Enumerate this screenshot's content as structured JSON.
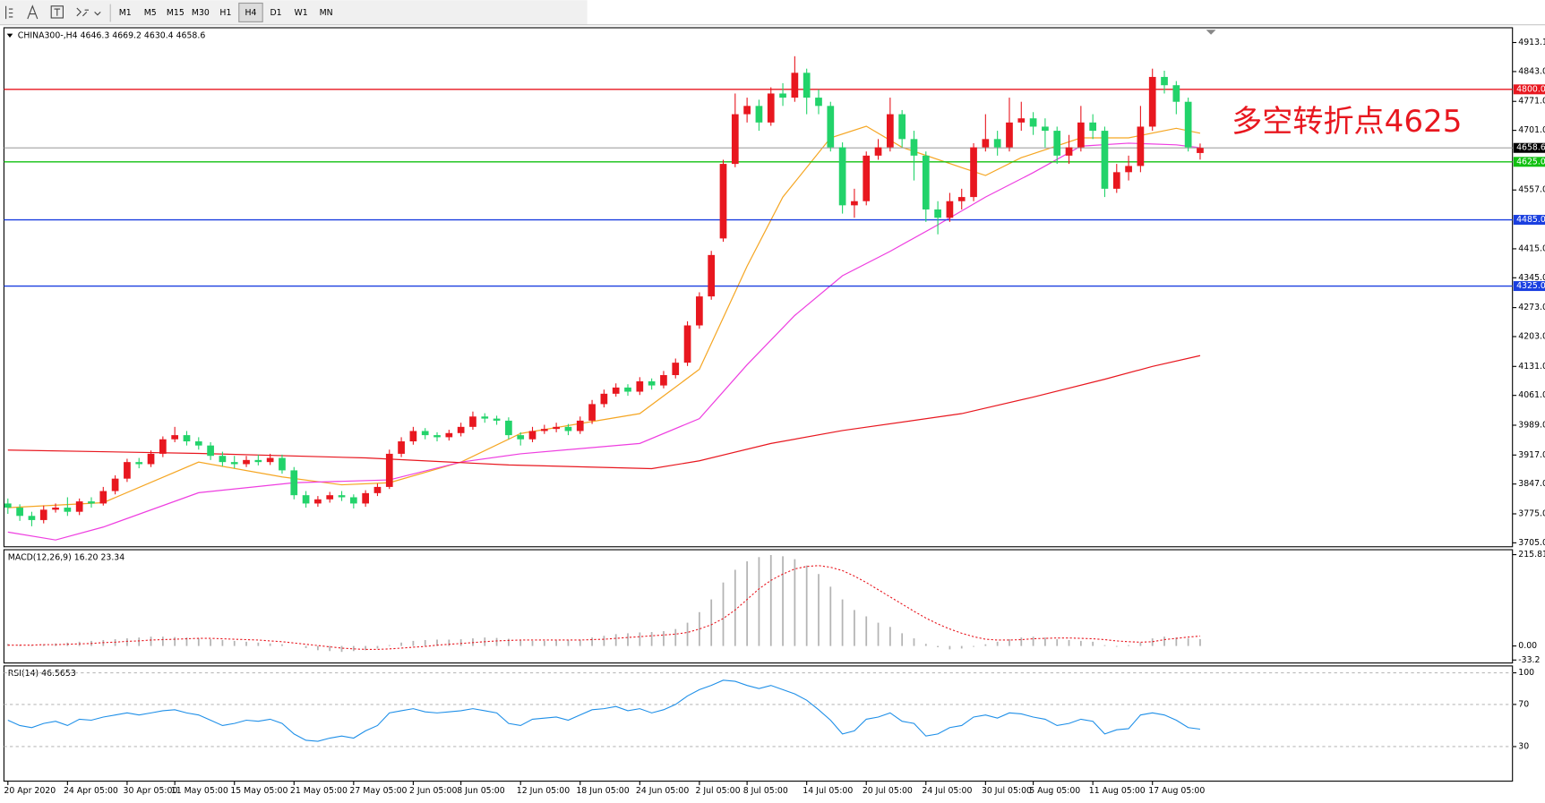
{
  "toolbar": {
    "buttons": [
      {
        "label": "M1",
        "pressed": false
      },
      {
        "label": "M5",
        "pressed": false
      },
      {
        "label": "M15",
        "pressed": false
      },
      {
        "label": "M30",
        "pressed": false
      },
      {
        "label": "H1",
        "pressed": false
      },
      {
        "label": "H4",
        "pressed": true
      },
      {
        "label": "D1",
        "pressed": false
      },
      {
        "label": "W1",
        "pressed": false
      },
      {
        "label": "MN",
        "pressed": false
      }
    ]
  },
  "chart_data": [
    {
      "type": "candlestick",
      "title": "CHINA300-,H4  4646.3 4669.2 4630.4 4658.6",
      "annotation": "多空转折点4625",
      "annotation_color": "#e8171f",
      "up_color": "#e8171f",
      "down_color": "#22d36a",
      "ylim": [
        3705,
        4913.1
      ],
      "yticks": [
        4913.1,
        {
          "value": 4843,
          "label": "4843.0"
        },
        {
          "value": 4771,
          "label": "4771.0"
        },
        {
          "value": 4701,
          "label": "4701.0"
        },
        {
          "value": 4557,
          "label": "4557.0"
        },
        {
          "value": 4415,
          "label": "4415.0"
        },
        {
          "value": 4345,
          "label": "4345.0"
        },
        {
          "value": 4273,
          "label": "4273.0"
        },
        {
          "value": 4203,
          "label": "4203.0"
        },
        {
          "value": 4131,
          "label": "4131.0"
        },
        {
          "value": 4061,
          "label": "4061.0"
        },
        {
          "value": 3989,
          "label": "3989.0"
        },
        {
          "value": 3917,
          "label": "3917.0"
        },
        {
          "value": 3847,
          "label": "3847.0"
        },
        {
          "value": 3775,
          "label": "3775.0"
        },
        {
          "value": 3705,
          "label": "3705.0"
        }
      ],
      "ohlc": [
        [
          3800,
          3812,
          3775,
          3790
        ],
        [
          3790,
          3798,
          3758,
          3770
        ],
        [
          3770,
          3780,
          3745,
          3760
        ],
        [
          3760,
          3795,
          3752,
          3785
        ],
        [
          3785,
          3800,
          3778,
          3790
        ],
        [
          3790,
          3815,
          3770,
          3780
        ],
        [
          3780,
          3812,
          3772,
          3805
        ],
        [
          3805,
          3815,
          3790,
          3800
        ],
        [
          3800,
          3840,
          3795,
          3830
        ],
        [
          3830,
          3868,
          3822,
          3860
        ],
        [
          3860,
          3908,
          3852,
          3900
        ],
        [
          3900,
          3910,
          3885,
          3895
        ],
        [
          3895,
          3928,
          3888,
          3920
        ],
        [
          3920,
          3962,
          3912,
          3955
        ],
        [
          3955,
          3985,
          3948,
          3965
        ],
        [
          3965,
          3975,
          3940,
          3950
        ],
        [
          3950,
          3960,
          3930,
          3940
        ],
        [
          3940,
          3948,
          3905,
          3915
        ],
        [
          3915,
          3925,
          3890,
          3900
        ],
        [
          3900,
          3915,
          3885,
          3895
        ],
        [
          3895,
          3915,
          3888,
          3905
        ],
        [
          3905,
          3918,
          3892,
          3900
        ],
        [
          3900,
          3920,
          3893,
          3910
        ],
        [
          3910,
          3918,
          3872,
          3880
        ],
        [
          3880,
          3888,
          3810,
          3820
        ],
        [
          3820,
          3830,
          3790,
          3800
        ],
        [
          3800,
          3818,
          3792,
          3810
        ],
        [
          3810,
          3828,
          3802,
          3820
        ],
        [
          3820,
          3830,
          3806,
          3815
        ],
        [
          3815,
          3822,
          3788,
          3800
        ],
        [
          3800,
          3832,
          3792,
          3825
        ],
        [
          3825,
          3848,
          3818,
          3840
        ],
        [
          3840,
          3930,
          3835,
          3920
        ],
        [
          3920,
          3960,
          3912,
          3950
        ],
        [
          3950,
          3985,
          3942,
          3975
        ],
        [
          3975,
          3982,
          3955,
          3965
        ],
        [
          3965,
          3972,
          3950,
          3960
        ],
        [
          3960,
          3978,
          3952,
          3970
        ],
        [
          3970,
          3995,
          3962,
          3985
        ],
        [
          3985,
          4022,
          3978,
          4010
        ],
        [
          4010,
          4018,
          3995,
          4005
        ],
        [
          4005,
          4012,
          3990,
          4000
        ],
        [
          4000,
          4008,
          3955,
          3965
        ],
        [
          3965,
          3972,
          3940,
          3955
        ],
        [
          3955,
          3985,
          3948,
          3975
        ],
        [
          3975,
          3990,
          3968,
          3980
        ],
        [
          3980,
          3995,
          3972,
          3985
        ],
        [
          3985,
          3992,
          3965,
          3975
        ],
        [
          3975,
          4010,
          3968,
          4000
        ],
        [
          4000,
          4050,
          3992,
          4040
        ],
        [
          4040,
          4075,
          4032,
          4065
        ],
        [
          4065,
          4090,
          4058,
          4080
        ],
        [
          4080,
          4088,
          4060,
          4070
        ],
        [
          4070,
          4105,
          4062,
          4095
        ],
        [
          4095,
          4102,
          4075,
          4085
        ],
        [
          4085,
          4120,
          4078,
          4110
        ],
        [
          4110,
          4150,
          4102,
          4140
        ],
        [
          4140,
          4240,
          4132,
          4230
        ],
        [
          4230,
          4310,
          4222,
          4300
        ],
        [
          4300,
          4410,
          4292,
          4400
        ],
        [
          4440,
          4630,
          4432,
          4620
        ],
        [
          4620,
          4790,
          4612,
          4740
        ],
        [
          4740,
          4780,
          4720,
          4760
        ],
        [
          4760,
          4775,
          4700,
          4720
        ],
        [
          4720,
          4805,
          4712,
          4790
        ],
        [
          4790,
          4815,
          4760,
          4780
        ],
        [
          4780,
          4880,
          4770,
          4840
        ],
        [
          4840,
          4850,
          4740,
          4780
        ],
        [
          4780,
          4800,
          4740,
          4760
        ],
        [
          4760,
          4770,
          4650,
          4660
        ],
        [
          4660,
          4672,
          4500,
          4520
        ],
        [
          4520,
          4560,
          4490,
          4530
        ],
        [
          4530,
          4650,
          4520,
          4640
        ],
        [
          4640,
          4680,
          4630,
          4660
        ],
        [
          4660,
          4780,
          4650,
          4740
        ],
        [
          4740,
          4750,
          4660,
          4680
        ],
        [
          4680,
          4700,
          4580,
          4640
        ],
        [
          4640,
          4650,
          4480,
          4510
        ],
        [
          4510,
          4530,
          4450,
          4490
        ],
        [
          4490,
          4550,
          4480,
          4530
        ],
        [
          4530,
          4560,
          4510,
          4540
        ],
        [
          4540,
          4670,
          4530,
          4660
        ],
        [
          4660,
          4740,
          4650,
          4680
        ],
        [
          4680,
          4700,
          4640,
          4660
        ],
        [
          4660,
          4780,
          4650,
          4720
        ],
        [
          4720,
          4770,
          4700,
          4730
        ],
        [
          4730,
          4745,
          4690,
          4710
        ],
        [
          4710,
          4730,
          4660,
          4700
        ],
        [
          4700,
          4710,
          4620,
          4640
        ],
        [
          4640,
          4690,
          4620,
          4660
        ],
        [
          4660,
          4760,
          4650,
          4720
        ],
        [
          4720,
          4740,
          4680,
          4700
        ],
        [
          4700,
          4710,
          4540,
          4560
        ],
        [
          4560,
          4620,
          4550,
          4600
        ],
        [
          4600,
          4640,
          4580,
          4615
        ],
        [
          4615,
          4760,
          4600,
          4710
        ],
        [
          4710,
          4850,
          4700,
          4830
        ],
        [
          4830,
          4845,
          4790,
          4810
        ],
        [
          4810,
          4820,
          4740,
          4770
        ],
        [
          4770,
          4780,
          4650,
          4660
        ],
        [
          4646.3,
          4669.2,
          4630.4,
          4658.6
        ]
      ],
      "lines": [
        {
          "color": "#f5a623",
          "x": [
            0,
            8,
            16,
            23,
            28,
            32,
            38,
            43,
            48,
            53,
            58,
            62,
            65,
            69,
            72,
            75,
            80,
            82,
            85,
            90,
            94,
            98,
            100
          ],
          "values": [
            3790,
            3802,
            3900,
            3864,
            3845,
            3850,
            3900,
            3969,
            3993,
            4017,
            4124,
            4373,
            4540,
            4683,
            4711,
            4660,
            4611,
            4592,
            4635,
            4683,
            4683,
            4706,
            4694
          ]
        },
        {
          "color": "#ee3ee0",
          "x": [
            0,
            4,
            8,
            16,
            24,
            32,
            38,
            43,
            53,
            58,
            62,
            66,
            70,
            74,
            78,
            82,
            86,
            90,
            94,
            98,
            100
          ],
          "values": [
            3731,
            3712,
            3743,
            3826,
            3850,
            3857,
            3900,
            3920,
            3945,
            4005,
            4135,
            4254,
            4350,
            4409,
            4473,
            4540,
            4599,
            4663,
            4670,
            4666,
            4659
          ]
        },
        {
          "color": "#e8171f",
          "x": [
            0,
            16,
            30,
            42,
            54,
            58,
            64,
            70,
            80,
            86,
            92,
            96,
            100
          ],
          "values": [
            3929,
            3921,
            3910,
            3893,
            3884,
            3903,
            3945,
            3976,
            4017,
            4057,
            4100,
            4131,
            4157
          ]
        }
      ],
      "levels": [
        {
          "value": 4800,
          "label": "4800.0",
          "color": "#e8171f"
        },
        {
          "value": 4625,
          "label": "4625.0",
          "color": "#11c011"
        },
        {
          "value": 4485,
          "label": "4485.0",
          "color": "#1a3fe0"
        },
        {
          "value": 4325,
          "label": "4325.0",
          "color": "#1a3fe0"
        }
      ],
      "price_line": {
        "value": 4658.6,
        "color": "#a0a0a0"
      }
    },
    {
      "type": "macd",
      "title": "MACD(12,26,9) 16.20 23.34",
      "ylim": [
        -33.2,
        215.81
      ],
      "yticks": [
        215.81,
        {
          "value": 0,
          "label": "0.00"
        },
        -33.2
      ],
      "histogram": {
        "color": "#b4b4b4",
        "values": [
          5,
          3,
          2,
          4,
          6,
          8,
          10,
          12,
          14,
          16,
          18,
          20,
          22,
          22,
          21,
          20,
          18,
          16,
          14,
          12,
          10,
          8,
          6,
          4,
          0,
          -5,
          -10,
          -12,
          -14,
          -12,
          -10,
          -6,
          2,
          8,
          12,
          14,
          15,
          15,
          16,
          18,
          20,
          19,
          17,
          14,
          12,
          12,
          13,
          14,
          15,
          20,
          24,
          28,
          30,
          32,
          33,
          35,
          40,
          55,
          80,
          110,
          150,
          180,
          200,
          210,
          215,
          212,
          205,
          190,
          170,
          140,
          110,
          85,
          70,
          55,
          45,
          30,
          18,
          5,
          -3,
          -8,
          -6,
          -2,
          4,
          10,
          16,
          20,
          22,
          20,
          16,
          14,
          12,
          10,
          2,
          -2,
          2,
          8,
          18,
          22,
          20,
          18,
          16.2
        ]
      },
      "signal": {
        "color": "#e8171f",
        "values": [
          2,
          2,
          2,
          3,
          3,
          4,
          5,
          6,
          8,
          9,
          11,
          12,
          14,
          15,
          16,
          17,
          18,
          18,
          17,
          16,
          15,
          14,
          12,
          10,
          7,
          4,
          1,
          -2,
          -5,
          -7,
          -8,
          -8,
          -7,
          -5,
          -3,
          -1,
          2,
          4,
          6,
          8,
          10,
          12,
          13,
          14,
          14,
          14,
          14,
          14,
          14,
          15,
          16,
          18,
          20,
          22,
          24,
          26,
          28,
          32,
          40,
          50,
          65,
          85,
          110,
          135,
          155,
          170,
          182,
          188,
          190,
          186,
          178,
          165,
          150,
          133,
          116,
          99,
          82,
          66,
          52,
          40,
          30,
          22,
          16,
          14,
          14,
          15,
          17,
          18,
          19,
          19,
          18,
          17,
          15,
          12,
          10,
          9,
          10,
          15,
          18,
          21,
          23.34
        ]
      }
    },
    {
      "type": "line",
      "title": "RSI(14) 46.5653",
      "color": "#1e8fe8",
      "ylim": [
        0,
        100
      ],
      "yticks": [
        100,
        70,
        30
      ],
      "values": [
        55,
        50,
        48,
        52,
        54,
        50,
        56,
        55,
        58,
        60,
        62,
        60,
        62,
        64,
        65,
        62,
        60,
        55,
        50,
        52,
        55,
        54,
        56,
        52,
        42,
        36,
        35,
        38,
        40,
        38,
        45,
        50,
        62,
        64,
        66,
        63,
        62,
        63,
        64,
        66,
        64,
        62,
        52,
        50,
        56,
        57,
        58,
        55,
        60,
        65,
        66,
        68,
        64,
        66,
        62,
        65,
        70,
        78,
        84,
        88,
        93,
        92,
        88,
        85,
        88,
        84,
        80,
        74,
        65,
        55,
        42,
        45,
        56,
        58,
        62,
        54,
        52,
        40,
        42,
        48,
        50,
        58,
        60,
        57,
        62,
        61,
        58,
        56,
        50,
        52,
        56,
        54,
        42,
        46,
        47,
        60,
        62,
        60,
        55,
        48,
        46.5653
      ],
      "categories": [
        "20 Apr 2020",
        null,
        null,
        null,
        null,
        "24 Apr 05:00",
        null,
        null,
        null,
        null,
        "30 Apr 05:00",
        null,
        null,
        null,
        "11 May 05:00",
        null,
        null,
        null,
        null,
        "15 May 05:00",
        null,
        null,
        null,
        null,
        "21 May 05:00",
        null,
        null,
        null,
        null,
        "27 May 05:00",
        null,
        null,
        null,
        null,
        "2 Jun 05:00",
        null,
        null,
        null,
        "8 Jun 05:00",
        null,
        null,
        null,
        null,
        "12 Jun 05:00",
        null,
        null,
        null,
        null,
        "18 Jun 05:00",
        null,
        null,
        null,
        null,
        "24 Jun 05:00",
        null,
        null,
        null,
        null,
        "2 Jul 05:00",
        null,
        null,
        null,
        "8 Jul 05:00",
        null,
        null,
        null,
        null,
        "14 Jul 05:00",
        null,
        null,
        null,
        null,
        "20 Jul 05:00",
        null,
        null,
        null,
        null,
        "24 Jul 05:00",
        null,
        null,
        null,
        null,
        "30 Jul 05:00",
        null,
        null,
        null,
        "5 Aug 05:00",
        null,
        null,
        null,
        null,
        "11 Aug 05:00",
        null,
        null,
        null,
        null,
        "17 Aug 05:00",
        null,
        null,
        null,
        null
      ]
    }
  ]
}
